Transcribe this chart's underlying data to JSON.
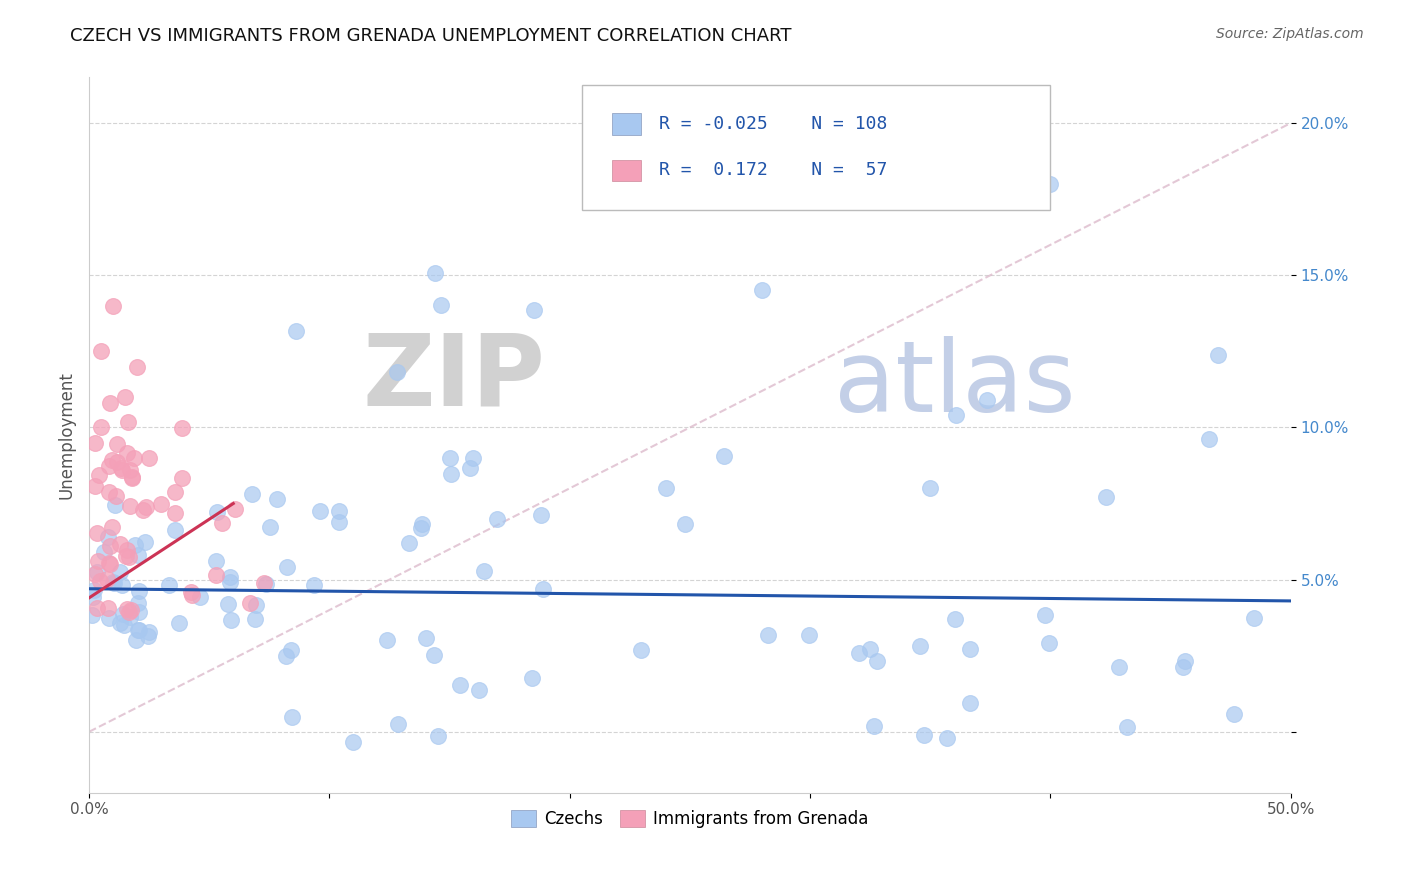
{
  "title": "CZECH VS IMMIGRANTS FROM GRENADA UNEMPLOYMENT CORRELATION CHART",
  "source": "Source: ZipAtlas.com",
  "xlabel": "",
  "ylabel": "Unemployment",
  "xlim": [
    0,
    0.5
  ],
  "ylim": [
    -0.02,
    0.215
  ],
  "x_ticks": [
    0.0,
    0.1,
    0.2,
    0.3,
    0.4,
    0.5
  ],
  "x_tick_labels": [
    "0.0%",
    "",
    "",
    "",
    "",
    "50.0%"
  ],
  "y_ticks": [
    0.0,
    0.05,
    0.1,
    0.15,
    0.2
  ],
  "y_tick_labels": [
    "",
    "5.0%",
    "10.0%",
    "15.0%",
    "20.0%"
  ],
  "background_color": "#ffffff",
  "grid_color": "#d0d0d0",
  "watermark_zip": "ZIP",
  "watermark_atlas": "atlas",
  "czech_color": "#a8c8f0",
  "grenada_color": "#f4a0b8",
  "czech_line_color": "#2255aa",
  "grenada_line_color": "#cc3355",
  "diag_line_color": "#ddbbcc",
  "title_color": "#111111",
  "source_color": "#666666",
  "legend_text_color": "#2255aa",
  "czechs_label": "Czechs",
  "grenada_label": "Immigrants from Grenada",
  "czech_R": -0.025,
  "czech_N": 108,
  "grenada_R": 0.172,
  "grenada_N": 57,
  "czech_line_y_start": 0.047,
  "czech_line_y_end": 0.043,
  "grenada_line_x_start": 0.0,
  "grenada_line_x_end": 0.06,
  "grenada_line_y_start": 0.044,
  "grenada_line_y_end": 0.075
}
